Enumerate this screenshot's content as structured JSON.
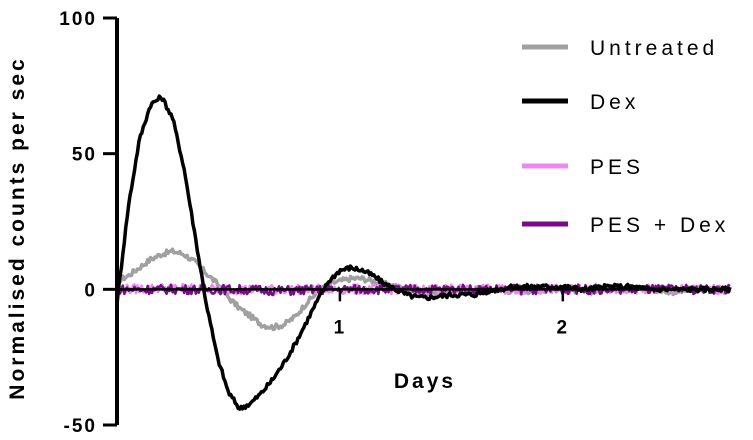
{
  "chart_data": {
    "type": "line",
    "xlabel": "Days",
    "ylabel": "Normalised counts per sec",
    "xlim": [
      0,
      2.75
    ],
    "ylim": [
      -50,
      100
    ],
    "xticks": [
      {
        "value": 1,
        "label": "1"
      },
      {
        "value": 2,
        "label": "2"
      }
    ],
    "yticks": [
      {
        "value": 100,
        "label": "100"
      },
      {
        "value": 50,
        "label": "50"
      },
      {
        "value": 0,
        "label": "0"
      },
      {
        "value": -50,
        "label": "-50"
      }
    ],
    "grid": false,
    "legend_position": "right",
    "series": [
      {
        "name": "Untreated",
        "color": "#a0a0a0",
        "x": [
          0,
          0.05,
          0.1,
          0.15,
          0.2,
          0.25,
          0.3,
          0.35,
          0.4,
          0.45,
          0.5,
          0.55,
          0.6,
          0.65,
          0.7,
          0.75,
          0.8,
          0.85,
          0.9,
          0.95,
          1.0,
          1.05,
          1.1,
          1.15,
          1.2,
          1.25,
          1.3,
          1.4,
          1.5,
          1.6,
          1.7,
          1.8,
          1.9,
          2.0,
          2.1,
          2.2,
          2.3,
          2.4,
          2.5,
          2.6,
          2.7,
          2.75
        ],
        "y": [
          3,
          5,
          8,
          11,
          13,
          14,
          13,
          10,
          6,
          2,
          -3,
          -7,
          -10,
          -13,
          -14,
          -13,
          -10,
          -5,
          -1,
          2,
          3,
          4,
          4,
          3,
          2,
          1,
          0,
          -1,
          -1,
          0,
          0,
          -1,
          0,
          0,
          -1,
          0,
          0,
          0,
          -1,
          0,
          0,
          0
        ]
      },
      {
        "name": "Dex",
        "color": "#000000",
        "x": [
          0,
          0.05,
          0.1,
          0.15,
          0.2,
          0.25,
          0.3,
          0.35,
          0.4,
          0.45,
          0.5,
          0.55,
          0.6,
          0.65,
          0.7,
          0.75,
          0.8,
          0.85,
          0.9,
          0.95,
          1.0,
          1.05,
          1.1,
          1.15,
          1.2,
          1.25,
          1.3,
          1.35,
          1.4,
          1.5,
          1.6,
          1.7,
          1.8,
          1.9,
          2.0,
          2.1,
          2.2,
          2.3,
          2.4,
          2.5,
          2.6,
          2.7,
          2.75
        ],
        "y": [
          -5,
          30,
          55,
          68,
          71,
          63,
          45,
          20,
          -5,
          -25,
          -38,
          -44,
          -42,
          -38,
          -33,
          -27,
          -20,
          -12,
          -4,
          3,
          7,
          8,
          7,
          5,
          2,
          0,
          -2,
          -3,
          -3,
          -2,
          -2,
          0,
          1,
          1,
          1,
          0,
          1,
          1,
          0,
          0,
          0,
          0,
          0
        ]
      },
      {
        "name": "PES",
        "color": "#ee88ee",
        "x": [
          0,
          0.25,
          0.5,
          0.75,
          1.0,
          1.25,
          1.5,
          1.75,
          2.0,
          2.25,
          2.5,
          2.75
        ],
        "y": [
          0,
          0.5,
          0,
          0,
          0,
          0,
          0,
          0,
          0,
          0,
          0,
          0
        ]
      },
      {
        "name": "PES + Dex",
        "color": "#7a0a8a",
        "x": [
          0,
          0.25,
          0.5,
          0.75,
          1.0,
          1.25,
          1.5,
          1.75,
          2.0,
          2.25,
          2.5,
          2.75
        ],
        "y": [
          0,
          0,
          0,
          -0.5,
          0,
          0,
          0,
          0,
          0,
          0,
          0,
          0
        ]
      }
    ]
  }
}
